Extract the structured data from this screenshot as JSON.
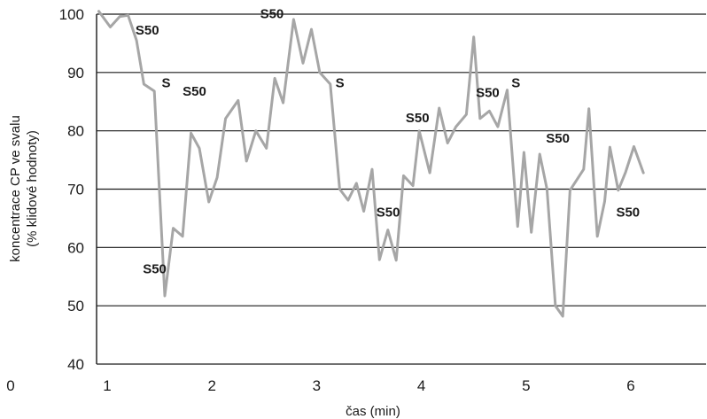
{
  "chart_data": {
    "type": "line",
    "xlabel": "čas (min)",
    "ylabel_lines": [
      "koncentrace CP ve svalu",
      "(% klidové hodnoty)"
    ],
    "xlim": [
      1,
      6.4
    ],
    "ylim": [
      40,
      100
    ],
    "x_origin_label": "0",
    "x_ticks": [
      1,
      2,
      3,
      4,
      5,
      6
    ],
    "y_ticks": [
      40,
      50,
      60,
      70,
      80,
      90,
      100
    ],
    "grid": "horizontal",
    "series_color": "#a6a6a6",
    "series": [
      {
        "points": [
          [
            0.92,
            100.5
          ],
          [
            1.03,
            97.8
          ],
          [
            1.12,
            99.6
          ],
          [
            1.2,
            99.8
          ],
          [
            1.28,
            95.5
          ],
          [
            1.35,
            88.0
          ],
          [
            1.45,
            86.8
          ],
          [
            1.55,
            51.7
          ],
          [
            1.63,
            63.3
          ],
          [
            1.72,
            61.9
          ],
          [
            1.8,
            79.6
          ],
          [
            1.88,
            77.0
          ],
          [
            1.97,
            67.8
          ],
          [
            2.05,
            72.0
          ],
          [
            2.13,
            82.1
          ],
          [
            2.25,
            85.2
          ],
          [
            2.33,
            74.8
          ],
          [
            2.42,
            80.0
          ],
          [
            2.52,
            77.0
          ],
          [
            2.6,
            89.0
          ],
          [
            2.68,
            84.8
          ],
          [
            2.78,
            99.1
          ],
          [
            2.87,
            91.6
          ],
          [
            2.95,
            97.4
          ],
          [
            3.03,
            90.0
          ],
          [
            3.13,
            88.0
          ],
          [
            3.22,
            70.0
          ],
          [
            3.3,
            68.1
          ],
          [
            3.38,
            71.0
          ],
          [
            3.45,
            66.2
          ],
          [
            3.53,
            73.4
          ],
          [
            3.6,
            57.9
          ],
          [
            3.68,
            63.0
          ],
          [
            3.76,
            57.8
          ],
          [
            3.83,
            72.3
          ],
          [
            3.92,
            70.6
          ],
          [
            3.98,
            80.0
          ],
          [
            4.08,
            72.8
          ],
          [
            4.17,
            83.9
          ],
          [
            4.25,
            77.9
          ],
          [
            4.33,
            80.7
          ],
          [
            4.43,
            82.8
          ],
          [
            4.5,
            96.1
          ],
          [
            4.56,
            82.1
          ],
          [
            4.65,
            83.4
          ],
          [
            4.73,
            80.7
          ],
          [
            4.82,
            87.0
          ],
          [
            4.92,
            63.6
          ],
          [
            4.98,
            76.3
          ],
          [
            5.05,
            62.6
          ],
          [
            5.13,
            76.0
          ],
          [
            5.2,
            70.0
          ],
          [
            5.28,
            50.0
          ],
          [
            5.35,
            48.2
          ],
          [
            5.42,
            69.8
          ],
          [
            5.55,
            73.4
          ],
          [
            5.6,
            83.8
          ],
          [
            5.68,
            61.9
          ],
          [
            5.75,
            67.9
          ],
          [
            5.8,
            77.2
          ],
          [
            5.88,
            69.8
          ],
          [
            5.95,
            72.9
          ],
          [
            6.03,
            77.3
          ],
          [
            6.12,
            72.8
          ]
        ]
      }
    ],
    "annotations": [
      {
        "text": "S50",
        "x": 1.27,
        "y": 96.5
      },
      {
        "text": "S",
        "x": 1.52,
        "y": 87.5
      },
      {
        "text": "S50",
        "x": 1.72,
        "y": 86.0
      },
      {
        "text": "S50",
        "x": 2.46,
        "y": 99.3
      },
      {
        "text": "S",
        "x": 3.18,
        "y": 87.5
      },
      {
        "text": "S50",
        "x": 3.85,
        "y": 81.5
      },
      {
        "text": "S50",
        "x": 4.52,
        "y": 85.8
      },
      {
        "text": "S",
        "x": 4.86,
        "y": 87.5
      },
      {
        "text": "S50",
        "x": 3.57,
        "y": 65.3
      },
      {
        "text": "S50",
        "x": 5.19,
        "y": 78.0
      },
      {
        "text": "S50",
        "x": 5.86,
        "y": 65.3
      },
      {
        "text": "S50",
        "x": 1.34,
        "y": 55.6
      }
    ]
  }
}
